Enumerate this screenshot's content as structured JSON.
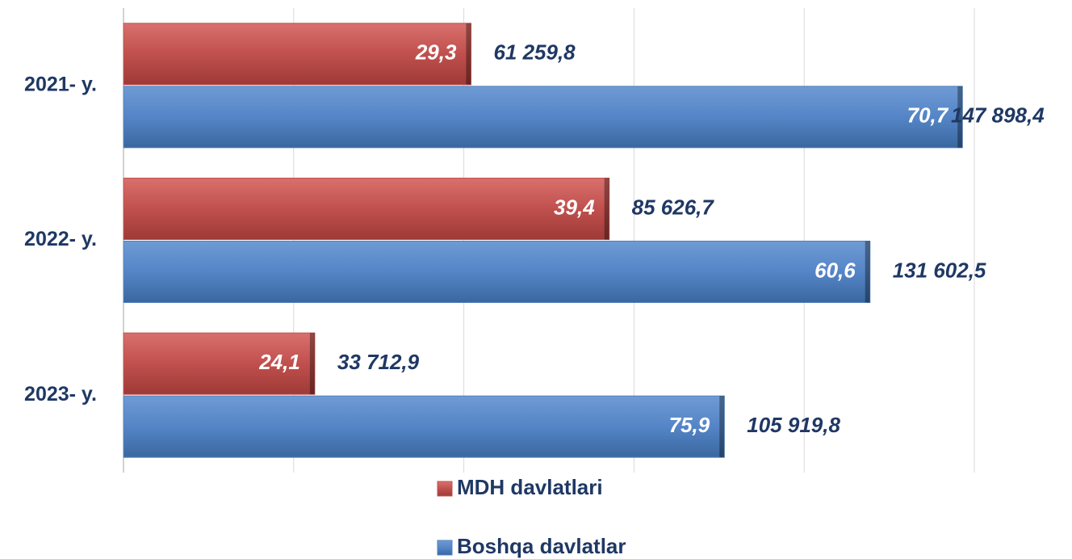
{
  "chart_data": {
    "type": "barh",
    "categories": [
      "2021- y.",
      "2022- y.",
      "2023- y."
    ],
    "series": [
      {
        "name": "MDH davlatlari",
        "color": "#c0504d",
        "values": [
          61259.8,
          85626.7,
          33712.9
        ],
        "value_labels": [
          "61 259,8",
          "85 626,7",
          "33 712,9"
        ],
        "shares": [
          29.3,
          39.4,
          24.1
        ],
        "share_labels": [
          "29,3",
          "39,4",
          "24,1"
        ]
      },
      {
        "name": "Boshqa davlatlar",
        "color": "#4f81bd",
        "values": [
          147898.4,
          131602.5,
          105919.8
        ],
        "value_labels": [
          "147 898,4",
          "131 602,5",
          "105 919,8"
        ],
        "shares": [
          70.7,
          60.6,
          75.9
        ],
        "share_labels": [
          "70,7",
          "60,6",
          "75,9"
        ]
      }
    ],
    "xlim": [
      0,
      150000
    ],
    "xticks": [
      0,
      30000,
      60000,
      90000,
      120000,
      150000
    ],
    "grid": true,
    "legend": "bottom"
  }
}
